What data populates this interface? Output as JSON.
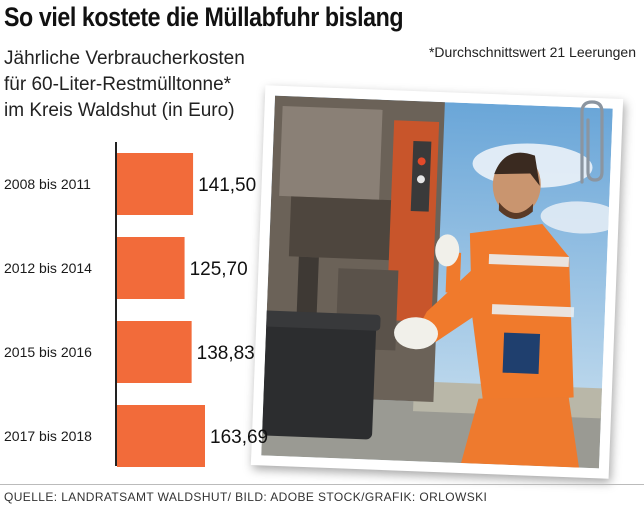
{
  "header": {
    "title": "So viel kostete die Müllabfuhr bislang",
    "subtitle_lines": [
      "Jährliche Verbraucherkosten",
      "für 60-Liter-Restmülltonne*",
      "im Kreis Waldshut (in Euro)"
    ],
    "footnote": "*Durchschnittswert 21 Leerungen"
  },
  "footer": {
    "source": "QUELLE: LANDRATSAMT WALDSHUT/ BILD: ADOBE STOCK/GRAFIK: ORLOWSKI"
  },
  "photo": {
    "subject": "waste collector in orange high-visibility workwear emptying a bin into a garbage truck"
  },
  "colors": {
    "bar": "#F26B3A",
    "axis": "#222222",
    "text": "#1a1a1a"
  },
  "chart_data": {
    "type": "bar",
    "orientation": "horizontal",
    "categories": [
      "2008 bis 2011",
      "2012 bis 2014",
      "2015 bis 2016",
      "2017 bis 2018"
    ],
    "values": [
      141.5,
      125.7,
      138.83,
      163.69
    ],
    "value_labels": [
      "141,50",
      "125,70",
      "138,83",
      "163,69"
    ],
    "unit": "Euro",
    "grid": false,
    "legend": "none"
  }
}
